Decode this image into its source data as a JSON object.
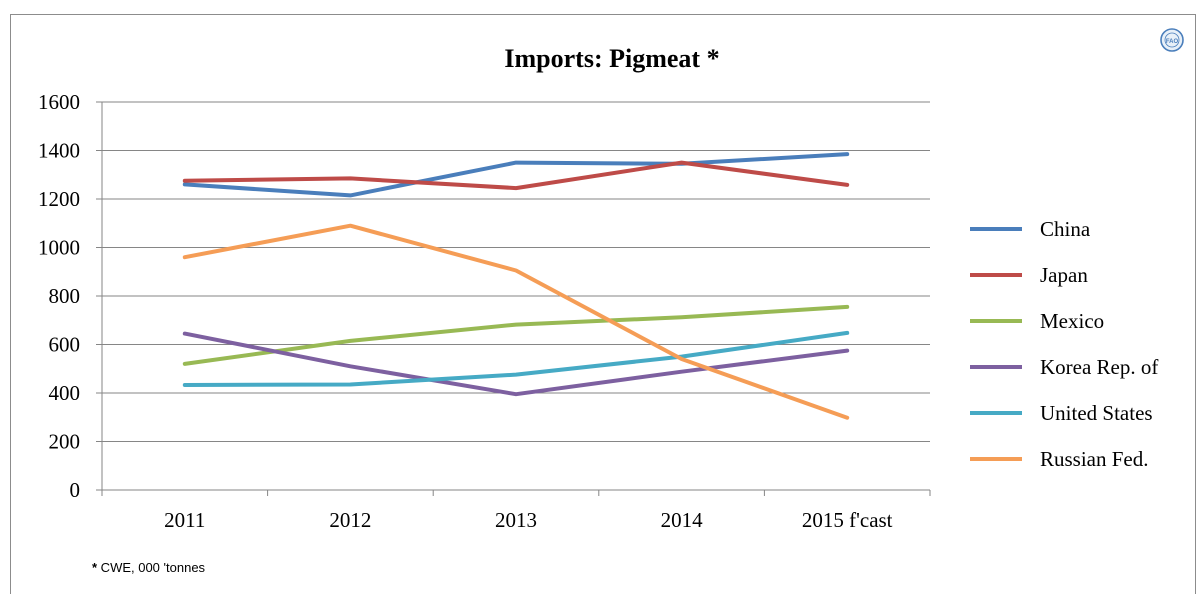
{
  "chart_data": {
    "type": "line",
    "title": "Imports: Pigmeat *",
    "xlabel": "",
    "ylabel": "",
    "categories": [
      "2011",
      "2012",
      "2013",
      "2014",
      "2015 f'cast"
    ],
    "ylim": [
      0,
      1600
    ],
    "yticks": [
      0,
      200,
      400,
      600,
      800,
      1000,
      1200,
      1400,
      1600
    ],
    "grid": true,
    "legend_position": "right",
    "series": [
      {
        "name": "China",
        "color": "#4a7ebb",
        "values": [
          1260,
          1215,
          1350,
          1345,
          1385
        ]
      },
      {
        "name": "Japan",
        "color": "#be4b48",
        "values": [
          1275,
          1285,
          1245,
          1350,
          1258
        ]
      },
      {
        "name": "Mexico",
        "color": "#98b954",
        "values": [
          520,
          615,
          682,
          712,
          755
        ]
      },
      {
        "name": "Korea Rep. of",
        "color": "#7d60a0",
        "values": [
          645,
          510,
          395,
          488,
          575
        ]
      },
      {
        "name": "United States",
        "color": "#46aac5",
        "values": [
          433,
          435,
          476,
          550,
          648
        ]
      },
      {
        "name": "Russian Fed.",
        "color": "#f59d56",
        "values": [
          960,
          1090,
          905,
          540,
          298
        ]
      }
    ]
  },
  "footnote": {
    "marker": "*",
    "text": " CWE, 000 'tonnes"
  },
  "logo": {
    "icon": "fao-logo-icon",
    "text": "FAO"
  }
}
